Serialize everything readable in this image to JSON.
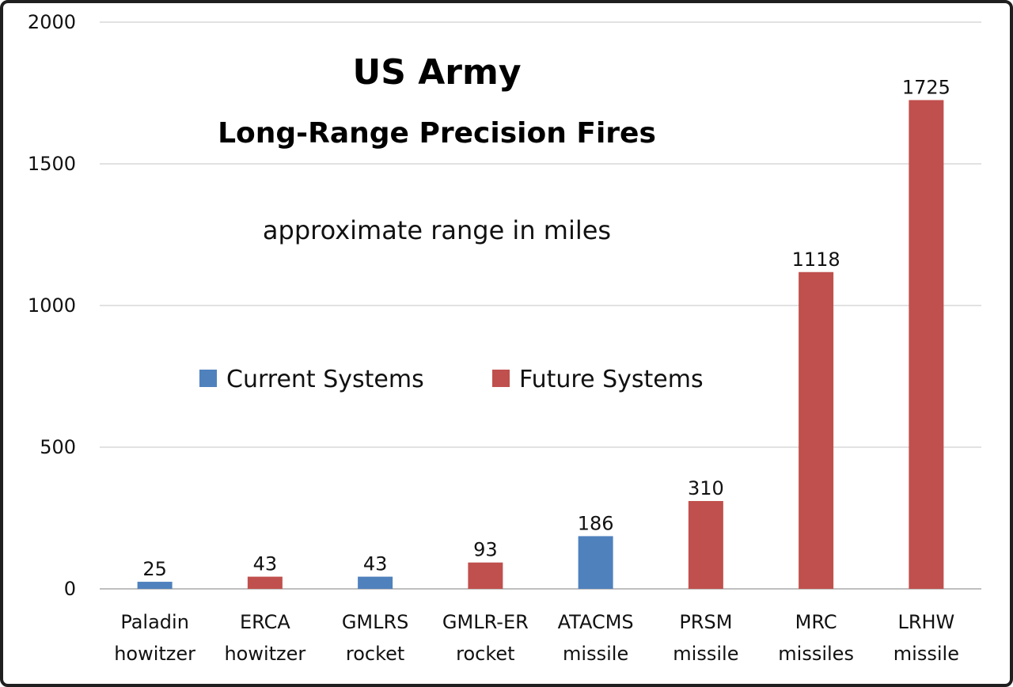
{
  "chart_data": {
    "type": "bar",
    "title": "US Army",
    "subtitle": "Long-Range Precision Fires",
    "annotation": "approximate range in miles",
    "xlabel": "",
    "ylabel": "",
    "ylim": [
      0,
      2000
    ],
    "yticks": [
      0,
      500,
      1000,
      1500,
      2000
    ],
    "grid": true,
    "legend_position": "center-left",
    "series": [
      {
        "name": "Current Systems",
        "color": "#4f81bd"
      },
      {
        "name": "Future Systems",
        "color": "#c0504d"
      }
    ],
    "categories": [
      {
        "line1": "Paladin",
        "line2": "howitzer",
        "value": 25,
        "series": "Current Systems",
        "label": "25"
      },
      {
        "line1": "ERCA",
        "line2": "howitzer",
        "value": 43,
        "series": "Future Systems",
        "label": "43"
      },
      {
        "line1": "GMLRS",
        "line2": "rocket",
        "value": 43,
        "series": "Current Systems",
        "label": "43"
      },
      {
        "line1": "GMLR-ER",
        "line2": "rocket",
        "value": 93,
        "series": "Future Systems",
        "label": "93"
      },
      {
        "line1": "ATACMS",
        "line2": "missile",
        "value": 186,
        "series": "Current Systems",
        "label": "186"
      },
      {
        "line1": "PRSM",
        "line2": "missile",
        "value": 310,
        "series": "Future Systems",
        "label": "310"
      },
      {
        "line1": "MRC",
        "line2": "missiles",
        "value": 1118,
        "series": "Future Systems",
        "label": "1118"
      },
      {
        "line1": "LRHW",
        "line2": "missile",
        "value": 1725,
        "series": "Future Systems",
        "label": "1725"
      }
    ]
  }
}
